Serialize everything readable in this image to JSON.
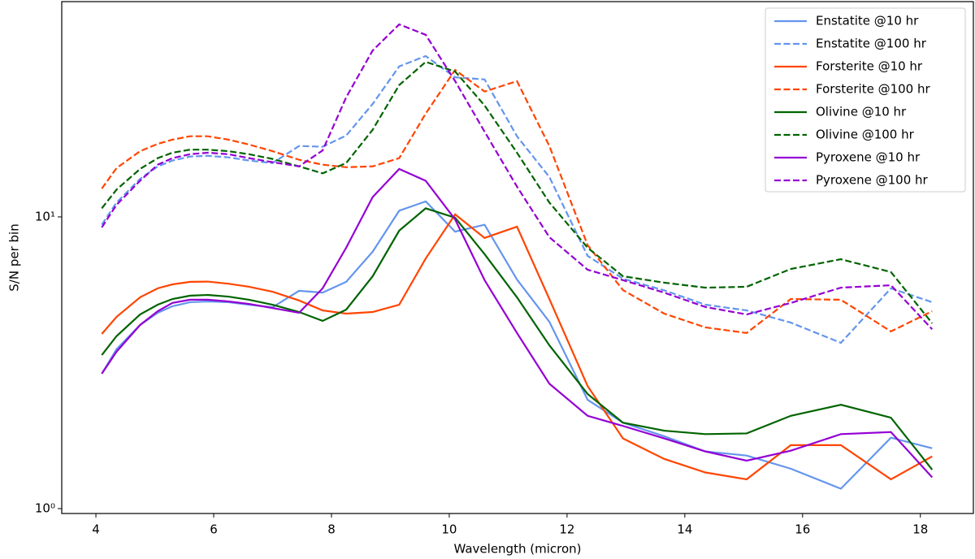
{
  "chart_data": {
    "type": "line",
    "xlabel": "Wavelength (micron)",
    "ylabel": "S/N per bin",
    "yscale": "log",
    "legend": "upper right",
    "grid": false,
    "xlim": [
      3.42,
      18.9
    ],
    "ylim": [
      0.962,
      54.7
    ],
    "xticks": [
      4,
      6,
      8,
      10,
      12,
      14,
      16,
      18
    ],
    "yticks": [
      {
        "value": 1,
        "label": "10⁰"
      },
      {
        "value": 10,
        "label": "10¹"
      }
    ],
    "x": [
      4.1,
      4.35,
      4.75,
      5.05,
      5.3,
      5.6,
      5.9,
      6.25,
      6.6,
      7.0,
      7.45,
      7.85,
      8.25,
      8.7,
      9.15,
      9.6,
      10.1,
      10.6,
      11.15,
      11.7,
      12.35,
      12.95,
      13.65,
      14.35,
      15.05,
      15.8,
      16.65,
      17.5,
      18.2
    ],
    "series": [
      {
        "name": "Enstatite @10 hr",
        "color": "#6495ed",
        "linestyle": "solid",
        "values": [
          2.9,
          3.52,
          4.26,
          4.69,
          4.94,
          5.1,
          5.13,
          5.1,
          5.0,
          4.9,
          5.58,
          5.5,
          5.99,
          7.6,
          10.5,
          11.3,
          8.9,
          9.4,
          6.1,
          4.37,
          2.36,
          1.97,
          1.77,
          1.57,
          1.52,
          1.37,
          1.17,
          1.75,
          1.61
        ]
      },
      {
        "name": "Enstatite @100 hr",
        "color": "#6495ed",
        "linestyle": "dashed",
        "values": [
          9.4,
          11.2,
          13.5,
          14.9,
          15.6,
          16.1,
          16.2,
          16.0,
          15.6,
          15.3,
          17.5,
          17.4,
          19.0,
          24.4,
          32.8,
          35.6,
          30.1,
          29.6,
          18.9,
          13.7,
          7.35,
          6.14,
          5.6,
          5.0,
          4.78,
          4.34,
          3.7,
          5.69,
          5.1
        ]
      },
      {
        "name": "Forsterite @10 hr",
        "color": "#ff4500",
        "linestyle": "solid",
        "values": [
          3.97,
          4.54,
          5.3,
          5.69,
          5.87,
          5.99,
          6.0,
          5.9,
          5.76,
          5.54,
          5.17,
          4.78,
          4.66,
          4.72,
          5.0,
          7.2,
          10.2,
          8.47,
          9.26,
          5.23,
          2.63,
          1.74,
          1.48,
          1.33,
          1.26,
          1.65,
          1.65,
          1.26,
          1.51
        ]
      },
      {
        "name": "Forsterite @100 hr",
        "color": "#ff4500",
        "linestyle": "dashed",
        "values": [
          12.5,
          14.7,
          16.8,
          17.8,
          18.4,
          18.9,
          18.9,
          18.4,
          17.7,
          16.8,
          15.7,
          15.1,
          14.8,
          14.9,
          15.9,
          22.6,
          31.9,
          26.9,
          29.2,
          17.5,
          8.0,
          5.61,
          4.66,
          4.18,
          4.0,
          5.23,
          5.2,
          4.05,
          4.75
        ]
      },
      {
        "name": "Olivine @10 hr",
        "color": "#006400",
        "linestyle": "solid",
        "values": [
          3.36,
          3.9,
          4.63,
          5.0,
          5.23,
          5.37,
          5.4,
          5.33,
          5.2,
          5.0,
          4.72,
          4.4,
          4.81,
          6.26,
          8.97,
          10.7,
          9.94,
          7.45,
          5.3,
          3.63,
          2.47,
          1.97,
          1.85,
          1.8,
          1.81,
          2.08,
          2.27,
          2.05,
          1.36
        ]
      },
      {
        "name": "Olivine @100 hr",
        "color": "#006400",
        "linestyle": "dashed",
        "values": [
          10.7,
          12.4,
          14.6,
          15.9,
          16.6,
          17.0,
          17.0,
          16.8,
          16.4,
          15.8,
          14.9,
          14.1,
          15.3,
          19.9,
          28.3,
          34.0,
          31.5,
          24.1,
          16.6,
          11.2,
          7.84,
          6.26,
          5.95,
          5.72,
          5.76,
          6.63,
          7.16,
          6.47,
          4.32
        ]
      },
      {
        "name": "Pyroxene @10 hr",
        "color": "#9400d3",
        "linestyle": "solid",
        "values": [
          2.9,
          3.45,
          4.26,
          4.75,
          5.07,
          5.2,
          5.2,
          5.13,
          5.03,
          4.87,
          4.69,
          5.69,
          7.84,
          11.7,
          14.6,
          13.3,
          9.8,
          6.07,
          4.0,
          2.68,
          2.08,
          1.92,
          1.74,
          1.57,
          1.46,
          1.58,
          1.8,
          1.83,
          1.28
        ]
      },
      {
        "name": "Pyroxene @100 hr",
        "color": "#9400d3",
        "linestyle": "dashed",
        "values": [
          9.2,
          11.0,
          13.3,
          15.1,
          15.9,
          16.4,
          16.6,
          16.4,
          15.9,
          15.4,
          14.9,
          16.9,
          25.7,
          37.2,
          45.7,
          42.1,
          29.2,
          19.6,
          12.7,
          8.52,
          6.59,
          6.07,
          5.5,
          4.91,
          4.63,
          5.07,
          5.72,
          5.83,
          4.12
        ]
      }
    ]
  }
}
